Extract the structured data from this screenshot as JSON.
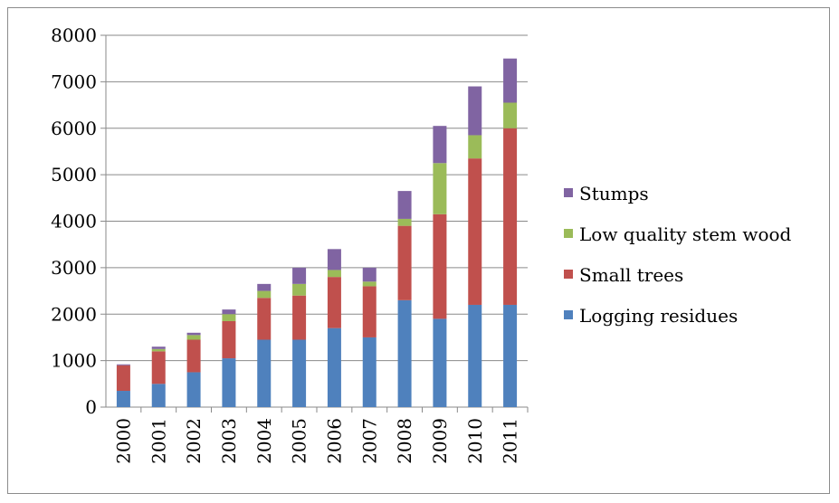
{
  "chart_data": {
    "type": "bar",
    "stacked": true,
    "categories": [
      "2000",
      "2001",
      "2002",
      "2003",
      "2004",
      "2005",
      "2006",
      "2007",
      "2008",
      "2009",
      "2010",
      "2011"
    ],
    "ylim": [
      0,
      8000
    ],
    "yticks": [
      0,
      1000,
      2000,
      3000,
      4000,
      5000,
      6000,
      7000,
      8000
    ],
    "title": "",
    "xlabel": "",
    "ylabel": "",
    "grid": true,
    "legend_position": "right",
    "series": [
      {
        "name": "Logging residues",
        "color": "#4f81bd",
        "values": [
          350,
          500,
          750,
          1050,
          1450,
          1450,
          1700,
          1500,
          2300,
          1900,
          2200,
          2200
        ]
      },
      {
        "name": "Small trees",
        "color": "#c0504d",
        "values": [
          550,
          700,
          700,
          800,
          900,
          950,
          1100,
          1100,
          1600,
          2250,
          3150,
          3800
        ]
      },
      {
        "name": "Low quality stem wood",
        "color": "#9bbb59",
        "values": [
          0,
          50,
          100,
          150,
          150,
          250,
          150,
          100,
          150,
          1100,
          500,
          550
        ]
      },
      {
        "name": "Stumps",
        "color": "#8064a2",
        "values": [
          20,
          50,
          50,
          100,
          150,
          350,
          450,
          300,
          600,
          800,
          1050,
          950
        ]
      }
    ]
  }
}
